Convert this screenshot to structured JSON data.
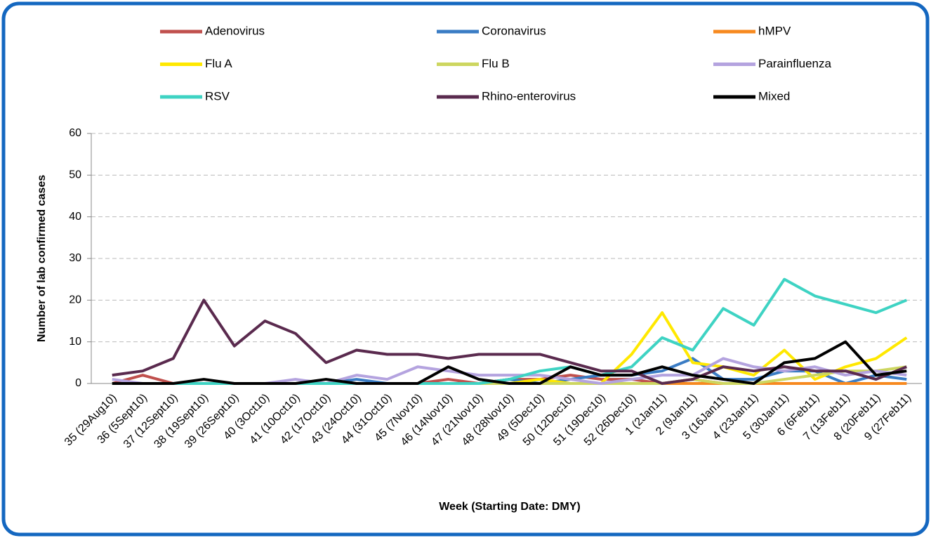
{
  "chart_data": {
    "type": "line",
    "y_label": "Number of lab confirmed cases",
    "x_label": "Week (Starting Date: DMY)",
    "categories": [
      "35 (29Aug10)",
      "36 (5Sept10)",
      "37 (12Sept10)",
      "38 (19Sept10)",
      "39 (26Sept10)",
      "40 (3Oct10)",
      "41 (10Oct10)",
      "42 (17Oct10)",
      "43 (24Oct10)",
      "44 (31Oct10)",
      "45 (7Nov10)",
      "46 (14Nov10)",
      "47 (21Nov10)",
      "48 (28Nov10)",
      "49 (5Dec10)",
      "50 (12Dec10)",
      "51 (19Dec10)",
      "52 (26Dec10)",
      "1 (2Jan11)",
      "2 (9Jan11)",
      "3 (16Jan11)",
      "4 (23Jan11)",
      "5 (30Jan11)",
      "6 (6Feb11)",
      "7 (13Feb11)",
      "8 (20Feb11)",
      "9 (27Feb11)"
    ],
    "series": [
      {
        "name": "Adenovirus",
        "color": "#c0504d",
        "values": [
          0,
          2,
          0,
          0,
          0,
          0,
          0,
          0,
          0,
          0,
          0,
          1,
          0,
          1,
          1,
          2,
          1,
          1,
          0,
          1,
          0,
          0,
          0,
          0,
          0,
          0,
          0
        ]
      },
      {
        "name": "Coronavirus",
        "color": "#3a7cc4",
        "values": [
          0,
          0,
          0,
          0,
          0,
          0,
          0,
          0,
          1,
          0,
          0,
          0,
          0,
          1,
          0,
          1,
          2,
          2,
          3,
          6,
          1,
          1,
          3,
          3,
          0,
          2,
          1
        ]
      },
      {
        "name": "hMPV",
        "color": "#f7891f",
        "values": [
          0,
          0,
          0,
          0,
          0,
          0,
          0,
          0,
          0,
          0,
          0,
          0,
          0,
          0,
          0,
          0,
          0,
          0,
          0,
          0,
          0,
          0,
          0,
          0,
          0,
          0,
          0
        ]
      },
      {
        "name": "Flu A",
        "color": "#ffe800",
        "values": [
          0,
          0,
          0,
          0,
          0,
          0,
          0,
          0,
          0,
          0,
          0,
          0,
          0,
          0,
          1,
          0,
          0,
          7,
          17,
          5,
          4,
          2,
          8,
          1,
          4,
          6,
          11
        ]
      },
      {
        "name": "Flu B",
        "color": "#cdd660",
        "values": [
          0,
          0,
          0,
          0,
          0,
          0,
          0,
          0,
          0,
          0,
          0,
          0,
          0,
          0,
          0,
          0,
          0,
          0,
          0,
          1,
          0,
          0,
          1,
          2,
          3,
          3,
          4
        ]
      },
      {
        "name": "Parainfluenza",
        "color": "#b4a3df",
        "values": [
          1,
          0,
          0,
          0,
          0,
          0,
          1,
          0,
          2,
          1,
          4,
          3,
          2,
          2,
          2,
          1,
          0,
          1,
          2,
          2,
          6,
          4,
          3,
          4,
          2,
          3,
          2
        ]
      },
      {
        "name": "RSV",
        "color": "#3ed3c3",
        "values": [
          0,
          0,
          0,
          0,
          0,
          0,
          0,
          0,
          0,
          0,
          0,
          0,
          0,
          1,
          3,
          4,
          2,
          4,
          11,
          8,
          18,
          14,
          25,
          21,
          19,
          17,
          20
        ]
      },
      {
        "name": "Rhino-enterovirus",
        "color": "#5a2a4e",
        "values": [
          2,
          3,
          6,
          20,
          9,
          15,
          12,
          5,
          8,
          7,
          7,
          6,
          7,
          7,
          7,
          5,
          3,
          3,
          0,
          1,
          4,
          3,
          4,
          3,
          3,
          1,
          4
        ]
      },
      {
        "name": "Mixed",
        "color": "#000000",
        "values": [
          0,
          0,
          0,
          1,
          0,
          0,
          0,
          1,
          0,
          0,
          0,
          4,
          1,
          0,
          0,
          4,
          2,
          2,
          4,
          2,
          1,
          0,
          5,
          6,
          10,
          2,
          3
        ]
      }
    ],
    "ylim": [
      0,
      60
    ],
    "yticks": [
      0,
      10,
      20,
      30,
      40,
      50,
      60
    ],
    "grid": true
  }
}
